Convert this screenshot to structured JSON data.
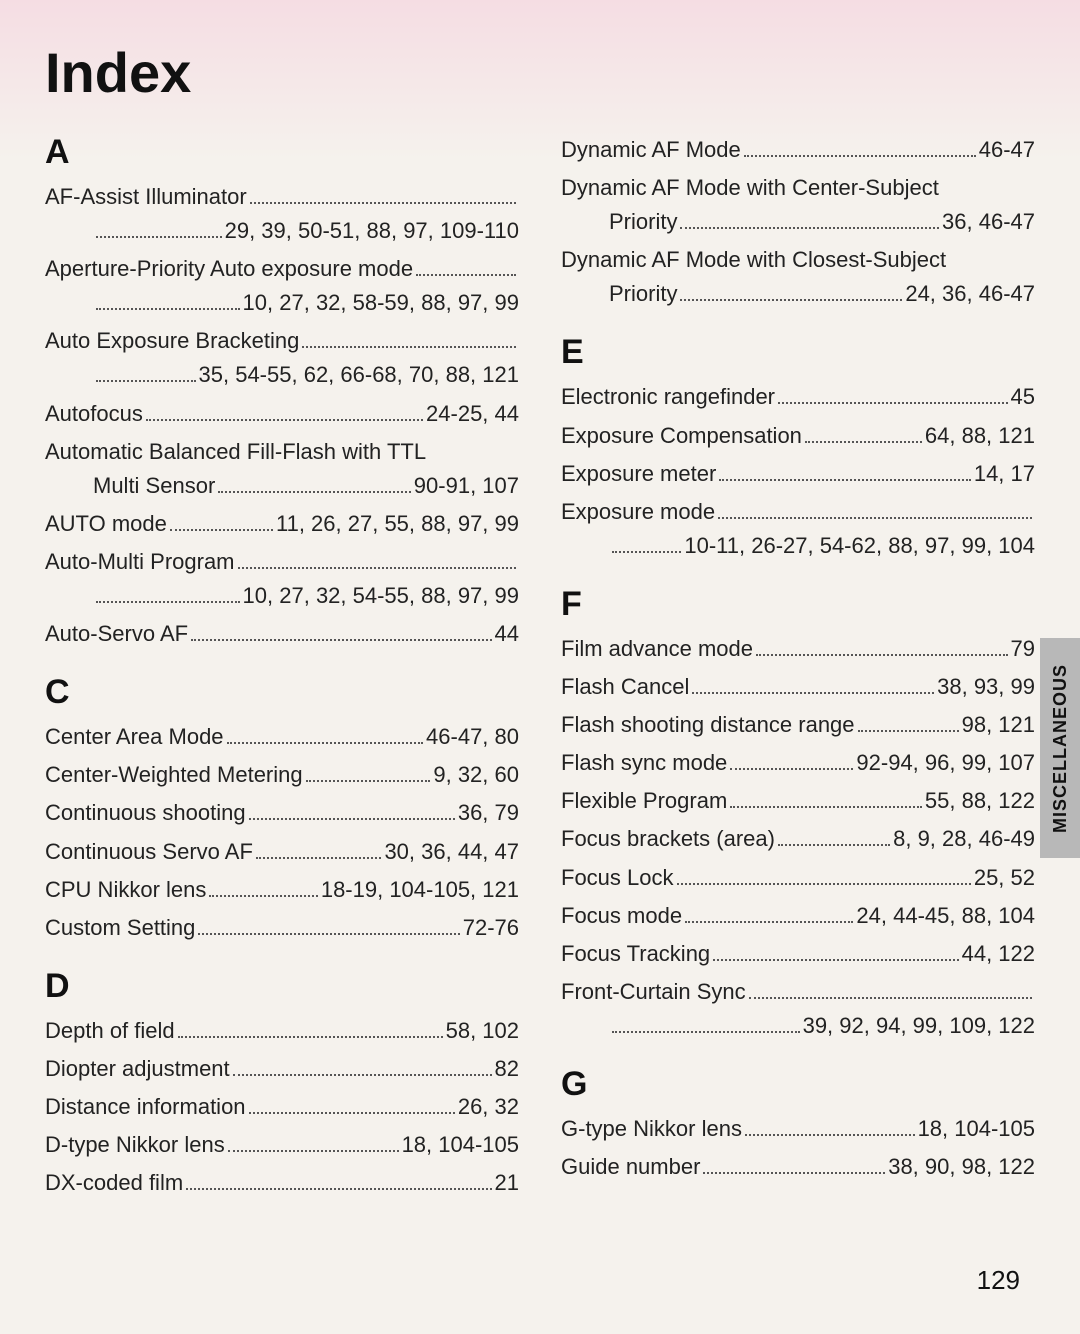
{
  "title": "Index",
  "sideTab": "MISCELLANEOUS",
  "pageNumber": "129",
  "leftColumn": [
    {
      "type": "letter",
      "text": "A"
    },
    {
      "type": "entry",
      "lines": [
        {
          "term": "AF-Assist Illuminator",
          "pages": ""
        },
        {
          "indent": true,
          "term": "",
          "pages": "29, 39, 50-51, 88, 97, 109-110"
        }
      ]
    },
    {
      "type": "entry",
      "lines": [
        {
          "term": "Aperture-Priority Auto exposure mode",
          "pages": ""
        },
        {
          "indent": true,
          "term": "",
          "pages": "10, 27, 32, 58-59, 88, 97, 99"
        }
      ]
    },
    {
      "type": "entry",
      "lines": [
        {
          "term": "Auto Exposure Bracketing",
          "pages": ""
        },
        {
          "indent": true,
          "term": "",
          "pages": "35, 54-55, 62, 66-68, 70, 88, 121"
        }
      ]
    },
    {
      "type": "entry",
      "lines": [
        {
          "term": "Autofocus",
          "pages": "24-25, 44"
        }
      ]
    },
    {
      "type": "entry",
      "lines": [
        {
          "term": "Automatic Balanced Fill-Flash with TTL",
          "pages": "",
          "nodots": true
        },
        {
          "indent": true,
          "term": "Multi Sensor",
          "pages": "90-91, 107"
        }
      ]
    },
    {
      "type": "entry",
      "lines": [
        {
          "term": "AUTO mode",
          "pages": "11, 26, 27, 55, 88, 97, 99"
        }
      ]
    },
    {
      "type": "entry",
      "lines": [
        {
          "term": "Auto-Multi Program",
          "pages": ""
        },
        {
          "indent": true,
          "term": "",
          "pages": "10, 27, 32, 54-55, 88, 97, 99"
        }
      ]
    },
    {
      "type": "entry",
      "lines": [
        {
          "term": "Auto-Servo AF",
          "pages": "44"
        }
      ]
    },
    {
      "type": "letter",
      "text": "C"
    },
    {
      "type": "entry",
      "lines": [
        {
          "term": "Center Area Mode",
          "pages": "46-47, 80"
        }
      ]
    },
    {
      "type": "entry",
      "lines": [
        {
          "term": "Center-Weighted Metering",
          "pages": "9, 32, 60"
        }
      ]
    },
    {
      "type": "entry",
      "lines": [
        {
          "term": "Continuous shooting",
          "pages": "36, 79"
        }
      ]
    },
    {
      "type": "entry",
      "lines": [
        {
          "term": "Continuous Servo AF",
          "pages": "30, 36, 44, 47"
        }
      ]
    },
    {
      "type": "entry",
      "lines": [
        {
          "term": "CPU Nikkor lens",
          "pages": "18-19, 104-105, 121"
        }
      ]
    },
    {
      "type": "entry",
      "lines": [
        {
          "term": "Custom Setting",
          "pages": "72-76"
        }
      ]
    },
    {
      "type": "letter",
      "text": "D"
    },
    {
      "type": "entry",
      "lines": [
        {
          "term": "Depth of field",
          "pages": "58, 102"
        }
      ]
    },
    {
      "type": "entry",
      "lines": [
        {
          "term": "Diopter adjustment",
          "pages": "82"
        }
      ]
    },
    {
      "type": "entry",
      "lines": [
        {
          "term": "Distance information",
          "pages": "26, 32"
        }
      ]
    },
    {
      "type": "entry",
      "lines": [
        {
          "term": "D-type Nikkor lens",
          "pages": "18, 104-105"
        }
      ]
    },
    {
      "type": "entry",
      "lines": [
        {
          "term": "DX-coded film",
          "pages": "21"
        }
      ]
    }
  ],
  "rightColumn": [
    {
      "type": "entry",
      "lines": [
        {
          "term": "Dynamic AF Mode",
          "pages": "46-47"
        }
      ]
    },
    {
      "type": "entry",
      "lines": [
        {
          "term": "Dynamic AF Mode with Center-Subject",
          "pages": "",
          "nodots": true
        },
        {
          "indent": true,
          "term": "Priority",
          "pages": "36, 46-47"
        }
      ]
    },
    {
      "type": "entry",
      "lines": [
        {
          "term": "Dynamic AF Mode with Closest-Subject",
          "pages": "",
          "nodots": true
        },
        {
          "indent": true,
          "term": "Priority",
          "pages": "24, 36, 46-47"
        }
      ]
    },
    {
      "type": "letter",
      "text": "E"
    },
    {
      "type": "entry",
      "lines": [
        {
          "term": "Electronic rangefinder",
          "pages": "45"
        }
      ]
    },
    {
      "type": "entry",
      "lines": [
        {
          "term": "Exposure Compensation",
          "pages": "64, 88, 121"
        }
      ]
    },
    {
      "type": "entry",
      "lines": [
        {
          "term": "Exposure meter",
          "pages": "14, 17"
        }
      ]
    },
    {
      "type": "entry",
      "lines": [
        {
          "term": "Exposure mode",
          "pages": ""
        },
        {
          "indent": true,
          "term": "",
          "pages": "10-11, 26-27, 54-62, 88, 97, 99, 104"
        }
      ]
    },
    {
      "type": "letter",
      "text": "F"
    },
    {
      "type": "entry",
      "lines": [
        {
          "term": "Film advance mode",
          "pages": "79"
        }
      ]
    },
    {
      "type": "entry",
      "lines": [
        {
          "term": "Flash Cancel",
          "pages": "38, 93, 99"
        }
      ]
    },
    {
      "type": "entry",
      "lines": [
        {
          "term": "Flash shooting distance range",
          "pages": "98, 121"
        }
      ]
    },
    {
      "type": "entry",
      "lines": [
        {
          "term": "Flash sync mode",
          "pages": "92-94, 96, 99, 107"
        }
      ]
    },
    {
      "type": "entry",
      "lines": [
        {
          "term": "Flexible Program",
          "pages": "55, 88, 122"
        }
      ]
    },
    {
      "type": "entry",
      "lines": [
        {
          "term": "Focus brackets (area)",
          "pages": "8, 9, 28, 46-49"
        }
      ]
    },
    {
      "type": "entry",
      "lines": [
        {
          "term": "Focus Lock",
          "pages": "25, 52"
        }
      ]
    },
    {
      "type": "entry",
      "lines": [
        {
          "term": "Focus mode",
          "pages": "24, 44-45, 88, 104"
        }
      ]
    },
    {
      "type": "entry",
      "lines": [
        {
          "term": "Focus Tracking",
          "pages": "44, 122"
        }
      ]
    },
    {
      "type": "entry",
      "lines": [
        {
          "term": "Front-Curtain Sync",
          "pages": ""
        },
        {
          "indent": true,
          "term": "",
          "pages": "39, 92, 94, 99, 109, 122"
        }
      ]
    },
    {
      "type": "letter",
      "text": "G"
    },
    {
      "type": "entry",
      "lines": [
        {
          "term": "G-type Nikkor lens",
          "pages": "18, 104-105"
        }
      ]
    },
    {
      "type": "entry",
      "lines": [
        {
          "term": "Guide number",
          "pages": "38, 90, 98, 122"
        }
      ]
    }
  ]
}
